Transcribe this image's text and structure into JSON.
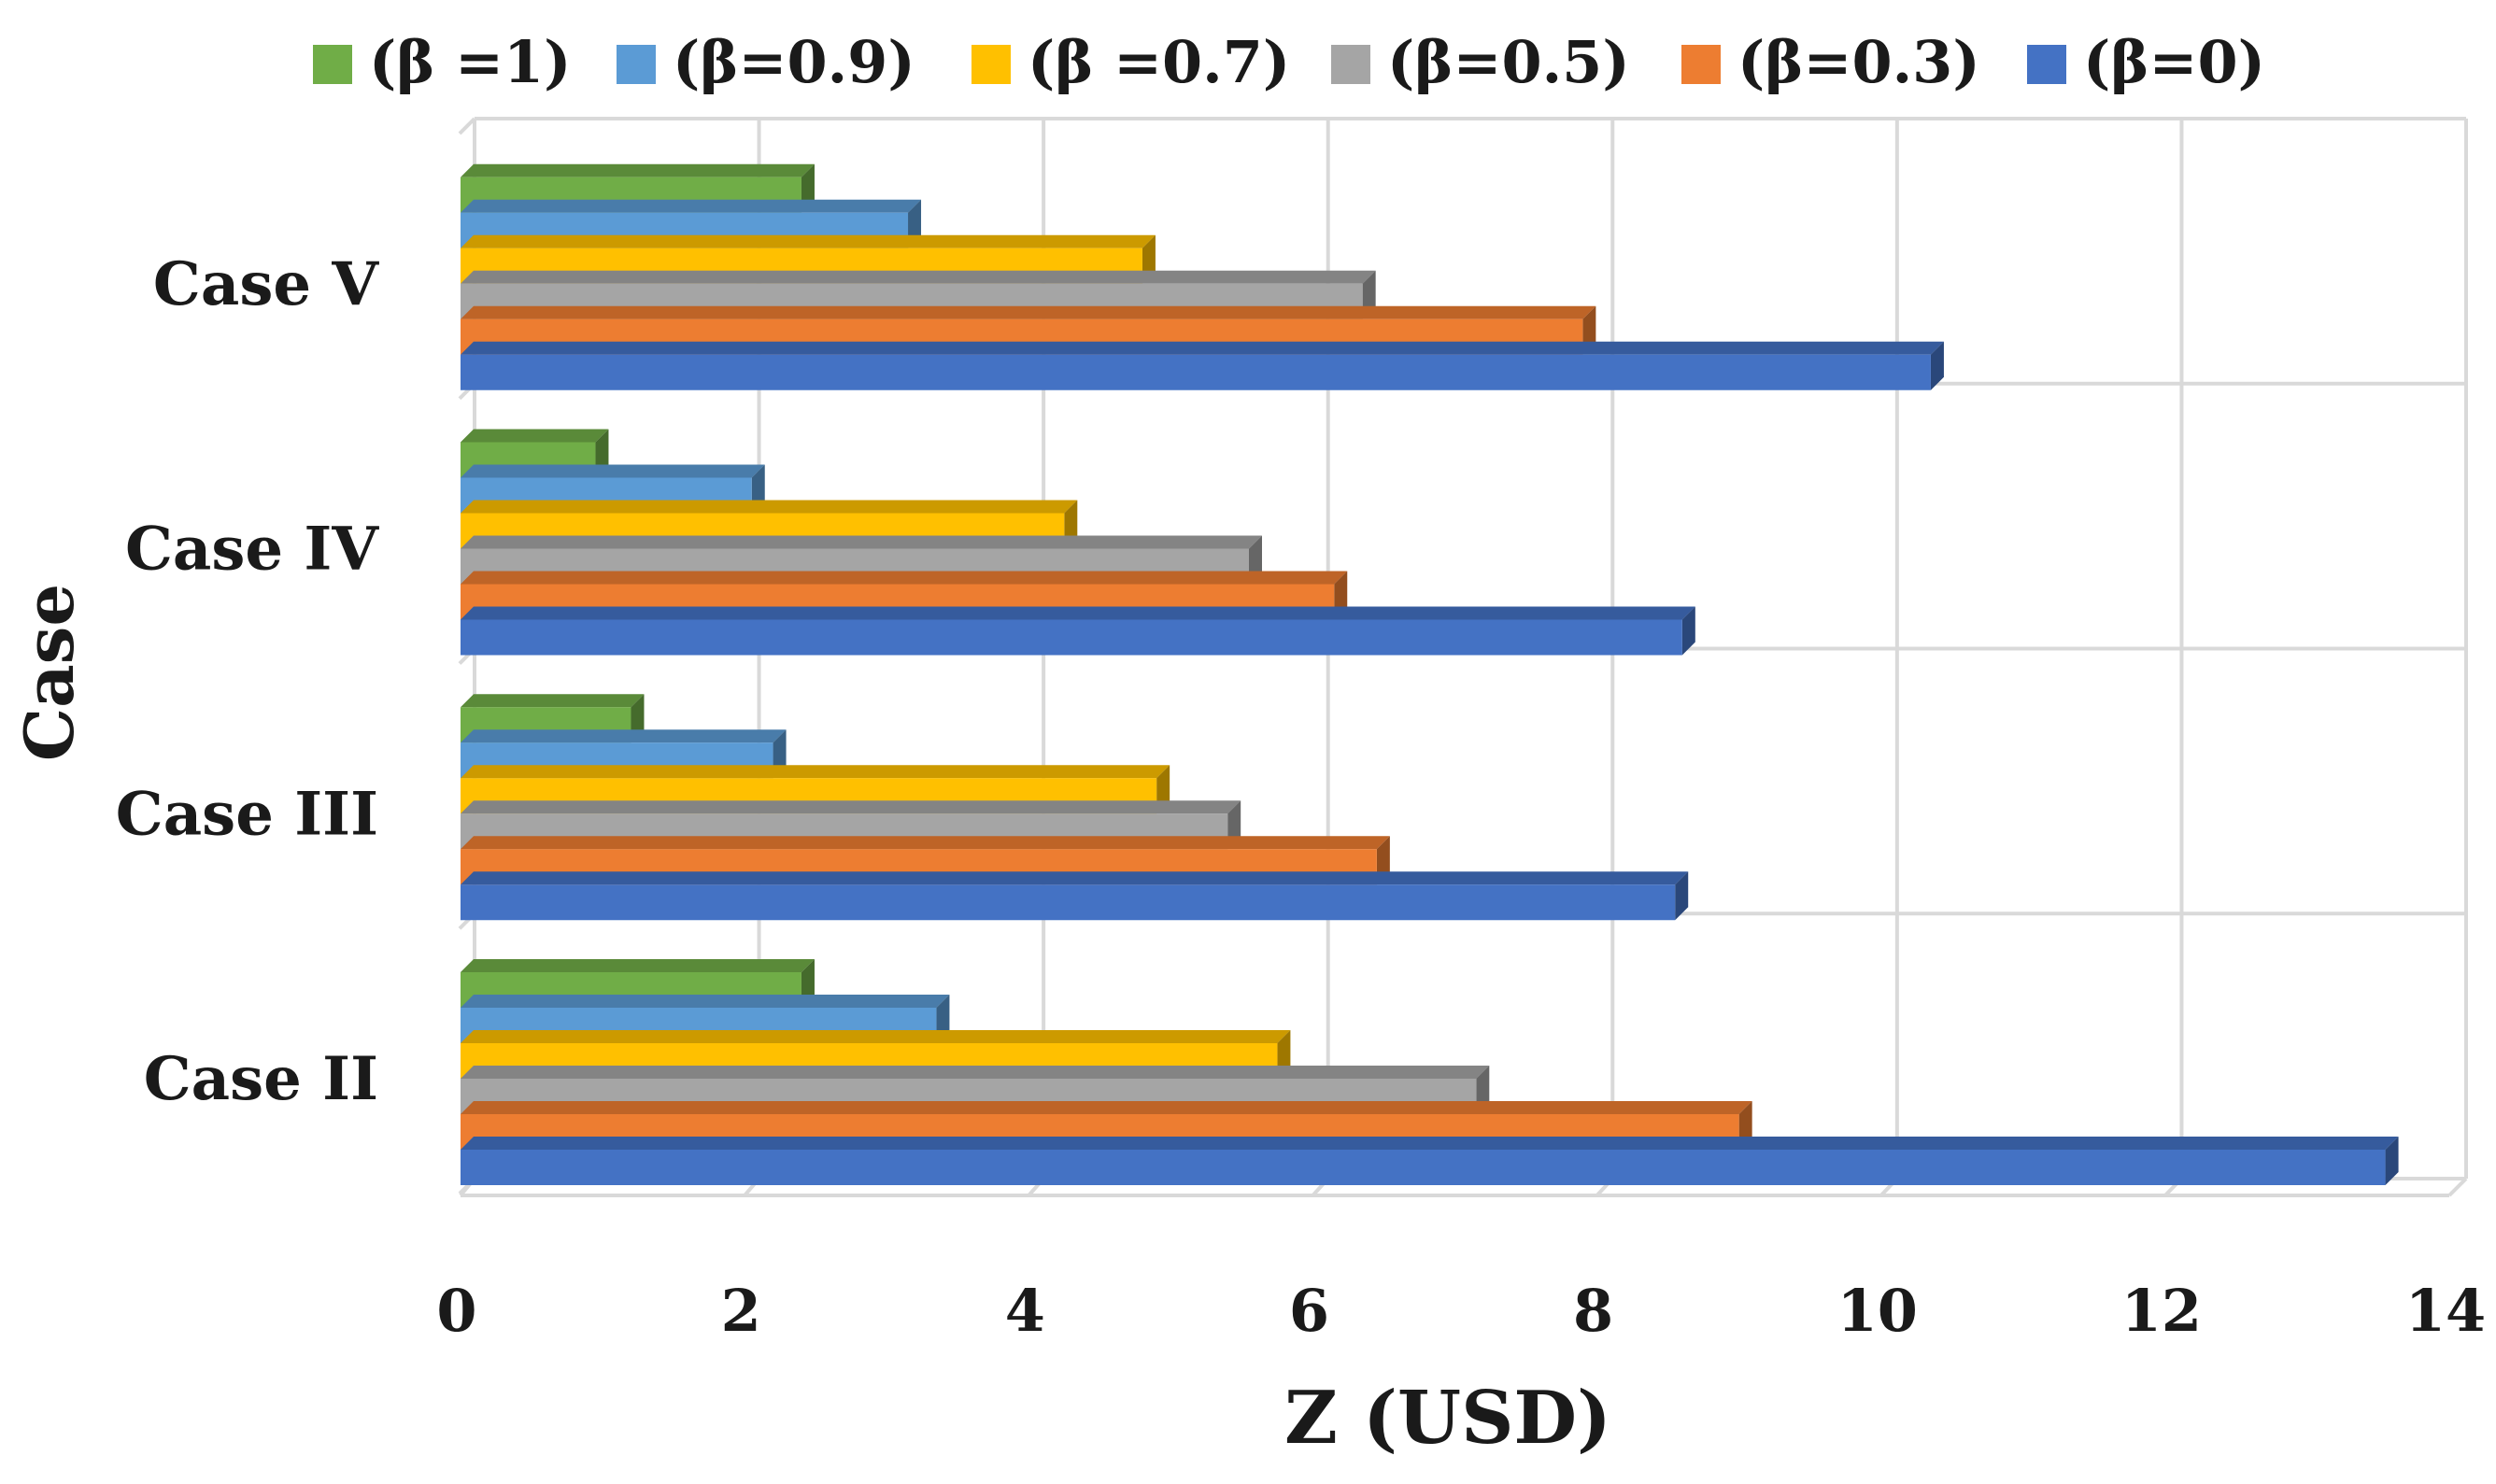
{
  "chart_data": {
    "type": "bar",
    "orientation": "horizontal",
    "title": "",
    "xlabel": "Z (USD)",
    "ylabel": "Case",
    "xlim": [
      0,
      14
    ],
    "xticks": [
      0,
      2,
      4,
      6,
      8,
      10,
      12,
      14
    ],
    "tick_labels": [
      "0",
      "2",
      "4",
      "6",
      "8",
      "10",
      "12",
      "14"
    ],
    "grid": true,
    "legend_position": "top",
    "categories": [
      "Case II",
      "Case III",
      "Case IV",
      "Case V"
    ],
    "series": [
      {
        "name": "(β =1)",
        "color": "#70ad47",
        "values": [
          2.4,
          1.2,
          0.95,
          2.4
        ]
      },
      {
        "name": "(β=0.9)",
        "color": "#5b9bd5",
        "values": [
          3.35,
          2.2,
          2.05,
          3.15
        ]
      },
      {
        "name": "(β =0.7)",
        "color": "#ffc000",
        "values": [
          5.75,
          4.9,
          4.25,
          4.8
        ]
      },
      {
        "name": "(β=0.5)",
        "color": "#a5a5a5",
        "values": [
          7.15,
          5.4,
          5.55,
          6.35
        ]
      },
      {
        "name": "(β=0.3)",
        "color": "#ed7d31",
        "values": [
          9.0,
          6.45,
          6.15,
          7.9
        ]
      },
      {
        "name": "(β=0)",
        "color": "#4472c4",
        "values": [
          13.55,
          8.55,
          8.6,
          10.35
        ]
      }
    ],
    "legend_order": [
      "(β =1)",
      "(β=0.9)",
      "(β =0.7)",
      "(β=0.5)",
      "(β=0.3)",
      "(β=0)"
    ]
  }
}
